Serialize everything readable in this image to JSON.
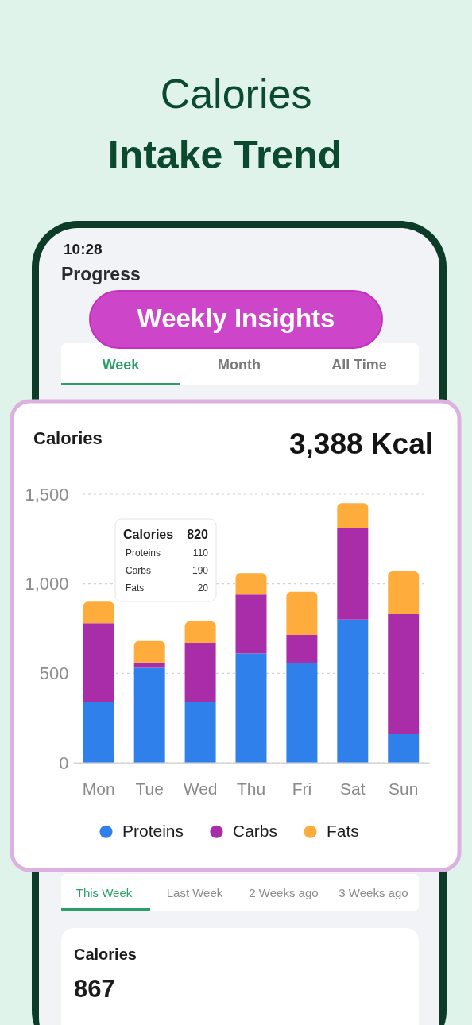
{
  "chart_data": {
    "type": "bar",
    "title": "Calories",
    "subtitle": "3,388 Kcal",
    "categories": [
      "Mon",
      "Tue",
      "Wed",
      "Thu",
      "Fri",
      "Sat",
      "Sun"
    ],
    "series": [
      {
        "name": "Proteins",
        "color": "#2f80ea",
        "values": [
          340,
          530,
          340,
          610,
          555,
          800,
          160
        ]
      },
      {
        "name": "Carbs",
        "color": "#a92ca8",
        "values": [
          440,
          30,
          330,
          330,
          160,
          510,
          670
        ]
      },
      {
        "name": "Fats",
        "color": "#fead3c",
        "values": [
          120,
          120,
          120,
          120,
          240,
          140,
          240
        ]
      }
    ],
    "stacked": true,
    "ylim": [
      0,
      1500
    ],
    "yticks": [
      0,
      500,
      {
        "value": 1000,
        "label": "1,000"
      },
      {
        "value": 1500,
        "label": "1,500"
      }
    ],
    "grid": "y",
    "legend": "bottom",
    "annotations": [
      "Calories",
      "Intake Trend",
      "10:28",
      "Progress",
      "Weekly Insights",
      "Week",
      "Month",
      "All Time",
      "Calories",
      "820",
      "Proteins",
      "110",
      "Carbs",
      "190",
      "Fats",
      "20",
      "This Week",
      "Last Week",
      "2 Weeks ago",
      "3 Weeks ago",
      "Calories",
      "867"
    ]
  }
}
